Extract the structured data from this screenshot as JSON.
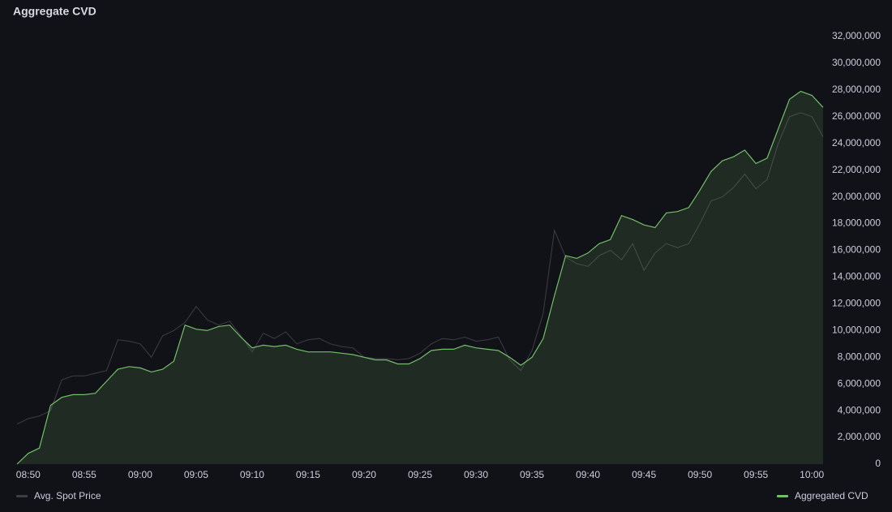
{
  "chart_data": {
    "type": "line",
    "title": "Aggregate CVD",
    "x": [
      "08:49",
      "08:50",
      "08:51",
      "08:52",
      "08:53",
      "08:54",
      "08:55",
      "08:56",
      "08:57",
      "08:58",
      "08:59",
      "09:00",
      "09:01",
      "09:02",
      "09:03",
      "09:04",
      "09:05",
      "09:06",
      "09:07",
      "09:08",
      "09:09",
      "09:10",
      "09:11",
      "09:12",
      "09:13",
      "09:14",
      "09:15",
      "09:16",
      "09:17",
      "09:18",
      "09:19",
      "09:20",
      "09:21",
      "09:22",
      "09:23",
      "09:24",
      "09:25",
      "09:26",
      "09:27",
      "09:28",
      "09:29",
      "09:30",
      "09:31",
      "09:32",
      "09:33",
      "09:34",
      "09:35",
      "09:36",
      "09:37",
      "09:38",
      "09:39",
      "09:40",
      "09:41",
      "09:42",
      "09:43",
      "09:44",
      "09:45",
      "09:46",
      "09:47",
      "09:48",
      "09:49",
      "09:50",
      "09:51",
      "09:52",
      "09:53",
      "09:54",
      "09:55",
      "09:56",
      "09:57",
      "09:58",
      "09:59",
      "10:00",
      "10:01"
    ],
    "series": [
      {
        "name": "Avg. Spot Price",
        "color": "#3d3d42",
        "fill": false,
        "values": [
          3000000,
          3400000,
          3600000,
          4000000,
          6300000,
          6600000,
          6600000,
          6800000,
          7000000,
          9300000,
          9200000,
          9000000,
          8000000,
          9600000,
          10000000,
          10600000,
          11800000,
          10800000,
          10400000,
          10700000,
          9600000,
          8400000,
          9800000,
          9400000,
          9900000,
          9000000,
          9300000,
          9400000,
          9000000,
          8800000,
          8700000,
          8000000,
          7900000,
          7900000,
          7800000,
          7900000,
          8300000,
          9000000,
          9400000,
          9300000,
          9500000,
          9200000,
          9300000,
          9500000,
          7800000,
          7000000,
          8500000,
          11300000,
          17500000,
          15500000,
          15000000,
          14800000,
          15600000,
          16000000,
          15300000,
          16500000,
          14500000,
          15800000,
          16500000,
          16200000,
          16500000,
          18000000,
          19700000,
          20000000,
          20700000,
          21700000,
          20600000,
          21300000,
          24000000,
          26000000,
          26300000,
          26000000,
          24500000
        ]
      },
      {
        "name": "Aggregated CVD",
        "color": "#73bf69",
        "fill": true,
        "values": [
          0,
          800000,
          1200000,
          4400000,
          5000000,
          5200000,
          5200000,
          5300000,
          6200000,
          7100000,
          7300000,
          7200000,
          6900000,
          7100000,
          7700000,
          10400000,
          10100000,
          10000000,
          10300000,
          10400000,
          9500000,
          8700000,
          8900000,
          8800000,
          8900000,
          8600000,
          8400000,
          8400000,
          8400000,
          8300000,
          8200000,
          8000000,
          7800000,
          7800000,
          7500000,
          7500000,
          7900000,
          8500000,
          8600000,
          8600000,
          8900000,
          8700000,
          8600000,
          8500000,
          8000000,
          7400000,
          8000000,
          9400000,
          12600000,
          15600000,
          15400000,
          15800000,
          16500000,
          16800000,
          18600000,
          18300000,
          17900000,
          17700000,
          18800000,
          18900000,
          19200000,
          20500000,
          21900000,
          22700000,
          23000000,
          23500000,
          22500000,
          22900000,
          25100000,
          27300000,
          27900000,
          27600000,
          26700000
        ]
      }
    ],
    "xlim": [
      "08:49",
      "10:01"
    ],
    "xticks": [
      "08:50",
      "08:55",
      "09:00",
      "09:05",
      "09:10",
      "09:15",
      "09:20",
      "09:25",
      "09:30",
      "09:35",
      "09:40",
      "09:45",
      "09:50",
      "09:55",
      "10:00"
    ],
    "ylim": [
      0,
      32000000
    ],
    "yticks": [
      0,
      {
        "value": 2000000,
        "label": "2,000,000"
      },
      {
        "value": 4000000,
        "label": "4,000,000"
      },
      {
        "value": 6000000,
        "label": "6,000,000"
      },
      {
        "value": 8000000,
        "label": "8,000,000"
      },
      {
        "value": 10000000,
        "label": "10,000,000"
      },
      {
        "value": 12000000,
        "label": "12,000,000"
      },
      {
        "value": 14000000,
        "label": "14,000,000"
      },
      {
        "value": 16000000,
        "label": "16,000,000"
      },
      {
        "value": 18000000,
        "label": "18,000,000"
      },
      {
        "value": 20000000,
        "label": "20,000,000"
      },
      {
        "value": 22000000,
        "label": "22,000,000"
      },
      {
        "value": 24000000,
        "label": "24,000,000"
      },
      {
        "value": 26000000,
        "label": "26,000,000"
      },
      {
        "value": 28000000,
        "label": "28,000,000"
      },
      {
        "value": 30000000,
        "label": "30,000,000"
      },
      {
        "value": 32000000,
        "label": "32,000,000"
      }
    ],
    "grid": false
  }
}
